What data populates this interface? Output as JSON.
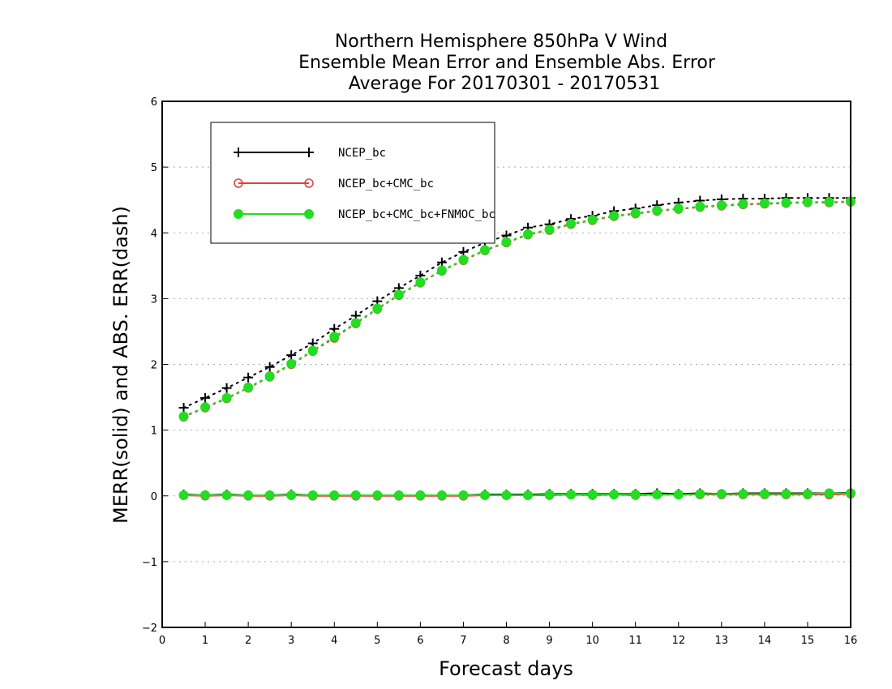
{
  "chart_data": {
    "type": "line",
    "title": [
      "Northern Hemisphere 850hPa V Wind",
      "Ensemble Mean Error and Ensemble Abs. Error",
      "Average For 20170301 - 20170531"
    ],
    "xlabel": "Forecast days",
    "ylabel": "MERR(solid) and ABS. ERR(dash)",
    "xlim": [
      0,
      16
    ],
    "ylim": [
      -2,
      6
    ],
    "xticks": [
      0,
      1,
      2,
      3,
      4,
      5,
      6,
      7,
      8,
      9,
      10,
      11,
      12,
      13,
      14,
      15,
      16
    ],
    "yticks": [
      -2,
      -1,
      0,
      1,
      2,
      3,
      4,
      5,
      6
    ],
    "grid": "horizontal-dotted",
    "legend_position": "top-left",
    "x": [
      0.5,
      1,
      1.5,
      2,
      2.5,
      3,
      3.5,
      4,
      4.5,
      5,
      5.5,
      6,
      6.5,
      7,
      7.5,
      8,
      8.5,
      9,
      9.5,
      10,
      10.5,
      11,
      11.5,
      12,
      12.5,
      13,
      13.5,
      14,
      14.5,
      15,
      15.5,
      16
    ],
    "series": [
      {
        "name": "NCEP_bc",
        "color": "#000000",
        "marker": "plus",
        "merr": [
          0.02,
          0.01,
          0.02,
          0.01,
          0.01,
          0.02,
          0.01,
          0.01,
          0.01,
          0.01,
          0.01,
          0.01,
          0.01,
          0.01,
          0.02,
          0.02,
          0.02,
          0.03,
          0.03,
          0.03,
          0.03,
          0.03,
          0.04,
          0.03,
          0.04,
          0.03,
          0.04,
          0.04,
          0.04,
          0.04,
          0.04,
          0.05
        ],
        "abs_err": [
          1.34,
          1.49,
          1.64,
          1.8,
          1.96,
          2.14,
          2.32,
          2.54,
          2.74,
          2.96,
          3.16,
          3.35,
          3.55,
          3.71,
          3.85,
          3.96,
          4.08,
          4.13,
          4.21,
          4.26,
          4.33,
          4.37,
          4.42,
          4.46,
          4.49,
          4.51,
          4.52,
          4.52,
          4.53,
          4.53,
          4.53,
          4.53
        ]
      },
      {
        "name": "NCEP_bc+CMC_bc",
        "color": "#e04040",
        "marker": "open-circle",
        "merr": [
          0.01,
          0.0,
          0.01,
          0.0,
          0.0,
          0.01,
          0.0,
          0.0,
          0.0,
          0.0,
          0.0,
          0.0,
          0.0,
          0.0,
          0.01,
          0.01,
          0.01,
          0.01,
          0.02,
          0.01,
          0.02,
          0.01,
          0.02,
          0.02,
          0.02,
          0.02,
          0.02,
          0.02,
          0.02,
          0.02,
          0.02,
          0.03
        ],
        "abs_err": [
          1.2,
          1.34,
          1.48,
          1.64,
          1.81,
          2.0,
          2.2,
          2.4,
          2.62,
          2.84,
          3.05,
          3.24,
          3.42,
          3.58,
          3.73,
          3.85,
          3.97,
          4.04,
          4.13,
          4.19,
          4.25,
          4.29,
          4.33,
          4.36,
          4.39,
          4.41,
          4.43,
          4.44,
          4.45,
          4.46,
          4.46,
          4.47
        ]
      },
      {
        "name": "NCEP_bc+CMC_bc+FNMOC_bc",
        "color": "#22dd22",
        "marker": "filled-circle",
        "merr": [
          0.01,
          0.01,
          0.01,
          0.01,
          0.01,
          0.01,
          0.01,
          0.01,
          0.01,
          0.01,
          0.01,
          0.01,
          0.01,
          0.01,
          0.01,
          0.01,
          0.01,
          0.02,
          0.02,
          0.02,
          0.02,
          0.02,
          0.02,
          0.02,
          0.03,
          0.03,
          0.03,
          0.03,
          0.03,
          0.03,
          0.04,
          0.04
        ],
        "abs_err": [
          1.21,
          1.35,
          1.49,
          1.65,
          1.82,
          2.01,
          2.21,
          2.42,
          2.63,
          2.85,
          3.06,
          3.25,
          3.43,
          3.59,
          3.74,
          3.86,
          3.98,
          4.05,
          4.14,
          4.2,
          4.26,
          4.3,
          4.34,
          4.37,
          4.4,
          4.42,
          4.44,
          4.45,
          4.46,
          4.47,
          4.47,
          4.48
        ]
      }
    ]
  }
}
